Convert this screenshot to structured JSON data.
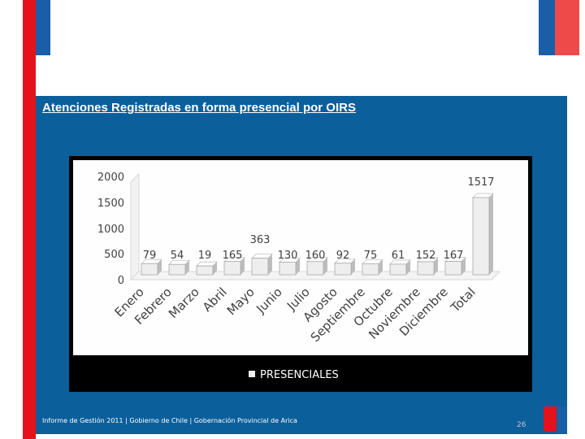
{
  "slide": {
    "title": "Atenciones Registradas en forma presencial por  OIRS",
    "footer": "Informe de Gestión 2011 | Gobierno de Chile | Gobernación Provincial de Arica",
    "page_number": "26"
  },
  "colors": {
    "accent_red": "#e3131b",
    "accent_blue": "#1a5ea8",
    "panel_blue": "#0b5f9b",
    "chart_bg": "#000000",
    "bar_fill": "#eeeeee"
  },
  "chart_data": {
    "type": "bar",
    "title": "",
    "categories": [
      "Enero",
      "Febrero",
      "Marzo",
      "Abril",
      "Mayo",
      "Junio",
      "Julio",
      "Agosto",
      "Septiembre",
      "Octubre",
      "Noviembre",
      "Diciembre",
      "Total"
    ],
    "series": [
      {
        "name": "PRESENCIALES",
        "values": [
          79,
          54,
          19,
          165,
          363,
          130,
          160,
          92,
          75,
          61,
          152,
          167,
          1517
        ]
      }
    ],
    "y_ticks": [
      "0",
      "500",
      "1000",
      "1500",
      "2000"
    ],
    "ylim": [
      0,
      2000
    ],
    "legend": {
      "position": "bottom",
      "label": "PRESENCIALES"
    },
    "xlabel": "",
    "ylabel": ""
  }
}
